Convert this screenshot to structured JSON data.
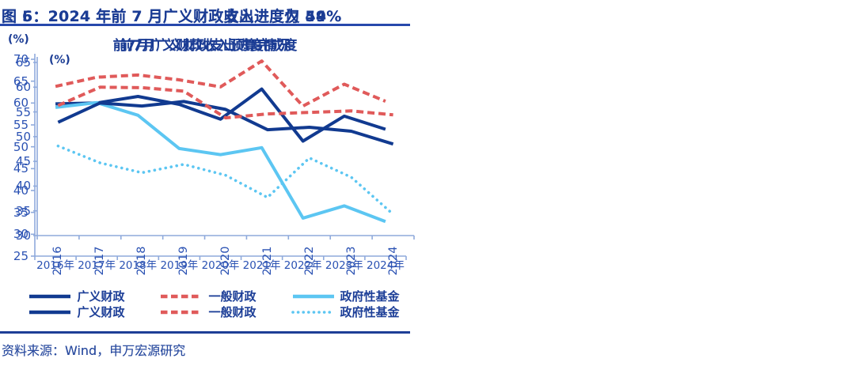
{
  "panels": [
    {
      "figure_title": "图 5：2024 年前 7 月广义财政收入进度为 54%",
      "source_text": "资料来源：Wind，申万宏源研究"
    },
    {
      "figure_title": "图 6：2024 年前 7 月广义财政支出进度仅 49%",
      "source_text": "资料来源：Wind，申万宏源研究"
    }
  ],
  "chart_data": [
    {
      "type": "line",
      "title": "前7月广义财政收入预算完成度",
      "unit_label": "(%)",
      "categories": [
        "2016年",
        "2017年",
        "2018年",
        "2019年",
        "2020年",
        "2021年",
        "2022年",
        "2023年",
        "2024年"
      ],
      "ylim": [
        25,
        70
      ],
      "y_ticks": [
        70,
        65,
        60,
        55,
        50,
        45,
        40,
        35,
        30,
        25
      ],
      "grid": false,
      "legend_position": "bottom",
      "x_labels_rotated": false,
      "series": [
        {
          "name": "广义财政",
          "id": "broad-fiscal",
          "style": "solid",
          "color": "#113A90",
          "values": [
            59.8,
            60.0,
            61.5,
            59.7,
            56.3,
            63.2,
            51.3,
            57.0,
            54.0
          ]
        },
        {
          "name": "一般财政",
          "id": "general-public-budget",
          "style": "dashed",
          "color": "#E05A5A",
          "values": [
            63.8,
            65.9,
            66.4,
            65.3,
            63.7,
            69.6,
            59.3,
            64.3,
            60.4
          ]
        },
        {
          "name": "政府性基金",
          "id": "government-funds",
          "style": "solid",
          "color": "#5CC6F2",
          "values": [
            59.0,
            60.1,
            57.2,
            49.6,
            48.2,
            49.8,
            33.7,
            36.5,
            32.9
          ]
        }
      ]
    },
    {
      "type": "line",
      "title": "前7月广义财政支出进度情况",
      "unit_label": "(%)",
      "categories": [
        "2016",
        "2017",
        "2018",
        "2019",
        "2020",
        "2021",
        "2022",
        "2023",
        "2024"
      ],
      "ylim": [
        30,
        65
      ],
      "y_ticks": [
        65,
        60,
        55,
        50,
        45,
        40,
        35,
        30
      ],
      "grid": false,
      "legend_position": "bottom",
      "x_labels_rotated": true,
      "series": [
        {
          "name": "广义财政",
          "id": "broad-fiscal",
          "style": "solid",
          "color": "#113A90",
          "values": [
            52.9,
            56.8,
            56.2,
            57.1,
            55.5,
            51.4,
            51.9,
            51.1,
            48.5
          ]
        },
        {
          "name": "一般财政",
          "id": "general-public-budget",
          "style": "dashed",
          "color": "#E05A5A",
          "values": [
            56.3,
            60.0,
            59.9,
            59.2,
            53.8,
            54.6,
            54.9,
            55.2,
            54.4
          ]
        },
        {
          "name": "政府性基金",
          "id": "government-funds",
          "style": "dotted",
          "color": "#5CC6F2",
          "values": [
            48.1,
            44.7,
            42.7,
            44.4,
            42.2,
            37.7,
            45.7,
            41.8,
            34.3
          ]
        }
      ]
    }
  ],
  "colors": {
    "title_blue": "#1B3C94",
    "tick_blue": "#2B52B3",
    "axis_blue": "#8FAADC",
    "series_navy": "#113A90",
    "series_red": "#E05A5A",
    "series_cyan": "#5CC6F2"
  }
}
